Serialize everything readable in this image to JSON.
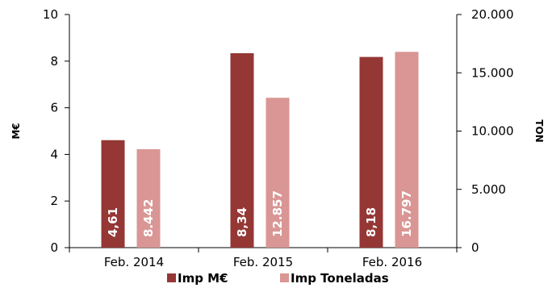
{
  "chart_data": {
    "type": "bar",
    "categories": [
      "Feb. 2014",
      "Feb. 2015",
      "Feb. 2016"
    ],
    "series": [
      {
        "name": "Imp M€",
        "axis": "left",
        "color": "#953735",
        "values": [
          4.61,
          8.34,
          8.18
        ],
        "labels": [
          "4,61",
          "8,34",
          "8,18"
        ]
      },
      {
        "name": "Imp Toneladas",
        "axis": "right",
        "color": "#D99694",
        "values": [
          8442,
          12857,
          16797
        ],
        "labels": [
          "8.442",
          "12.857",
          "16.797"
        ]
      }
    ],
    "y_left": {
      "label": "M€",
      "min": 0,
      "max": 10,
      "ticks": [
        0,
        2,
        4,
        6,
        8,
        10
      ],
      "tick_labels": [
        "0",
        "2",
        "4",
        "6",
        "8",
        "10"
      ]
    },
    "y_right": {
      "label": "TON",
      "min": 0,
      "max": 20000,
      "ticks": [
        0,
        5000,
        10000,
        15000,
        20000
      ],
      "tick_labels": [
        "0",
        "5.000",
        "10.000",
        "15.000",
        "20.000"
      ]
    },
    "grid": false,
    "legend_position": "bottom"
  }
}
